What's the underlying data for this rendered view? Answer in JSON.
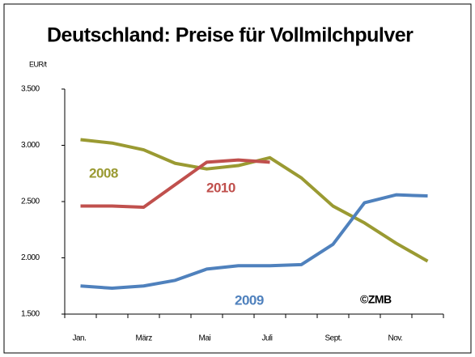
{
  "chart_data": {
    "type": "line",
    "title": "Deutschland: Preise für Vollmilchpulver",
    "y_axis_label": "EUR/t",
    "annotation": "©ZMB",
    "categories": [
      "Jan.",
      null,
      "März",
      null,
      "Mai",
      null,
      "Juli",
      null,
      "Sept.",
      null,
      "Nov.",
      null
    ],
    "series": [
      {
        "name": "2008",
        "color": "#9a9a32",
        "values": [
          3050,
          3020,
          2960,
          2840,
          2790,
          2820,
          2890,
          2710,
          2460,
          2310,
          2130,
          1970
        ]
      },
      {
        "name": "2009",
        "color": "#4f81bd",
        "values": [
          1750,
          1730,
          1750,
          1800,
          1900,
          1930,
          1930,
          1940,
          2120,
          2490,
          2560,
          2550
        ]
      },
      {
        "name": "2010",
        "color": "#c0504d",
        "values": [
          2460,
          2460,
          2450,
          2650,
          2850,
          2870,
          2850,
          null,
          null,
          null,
          null,
          null
        ]
      }
    ],
    "ylim": [
      1500,
      3500
    ],
    "yticks": [
      {
        "value": 1500,
        "label": "1.500"
      },
      {
        "value": 2000,
        "label": "2.000"
      },
      {
        "value": 2500,
        "label": "2.500"
      },
      {
        "value": 3000,
        "label": "3.000"
      },
      {
        "value": 3500,
        "label": "3.500"
      }
    ]
  }
}
